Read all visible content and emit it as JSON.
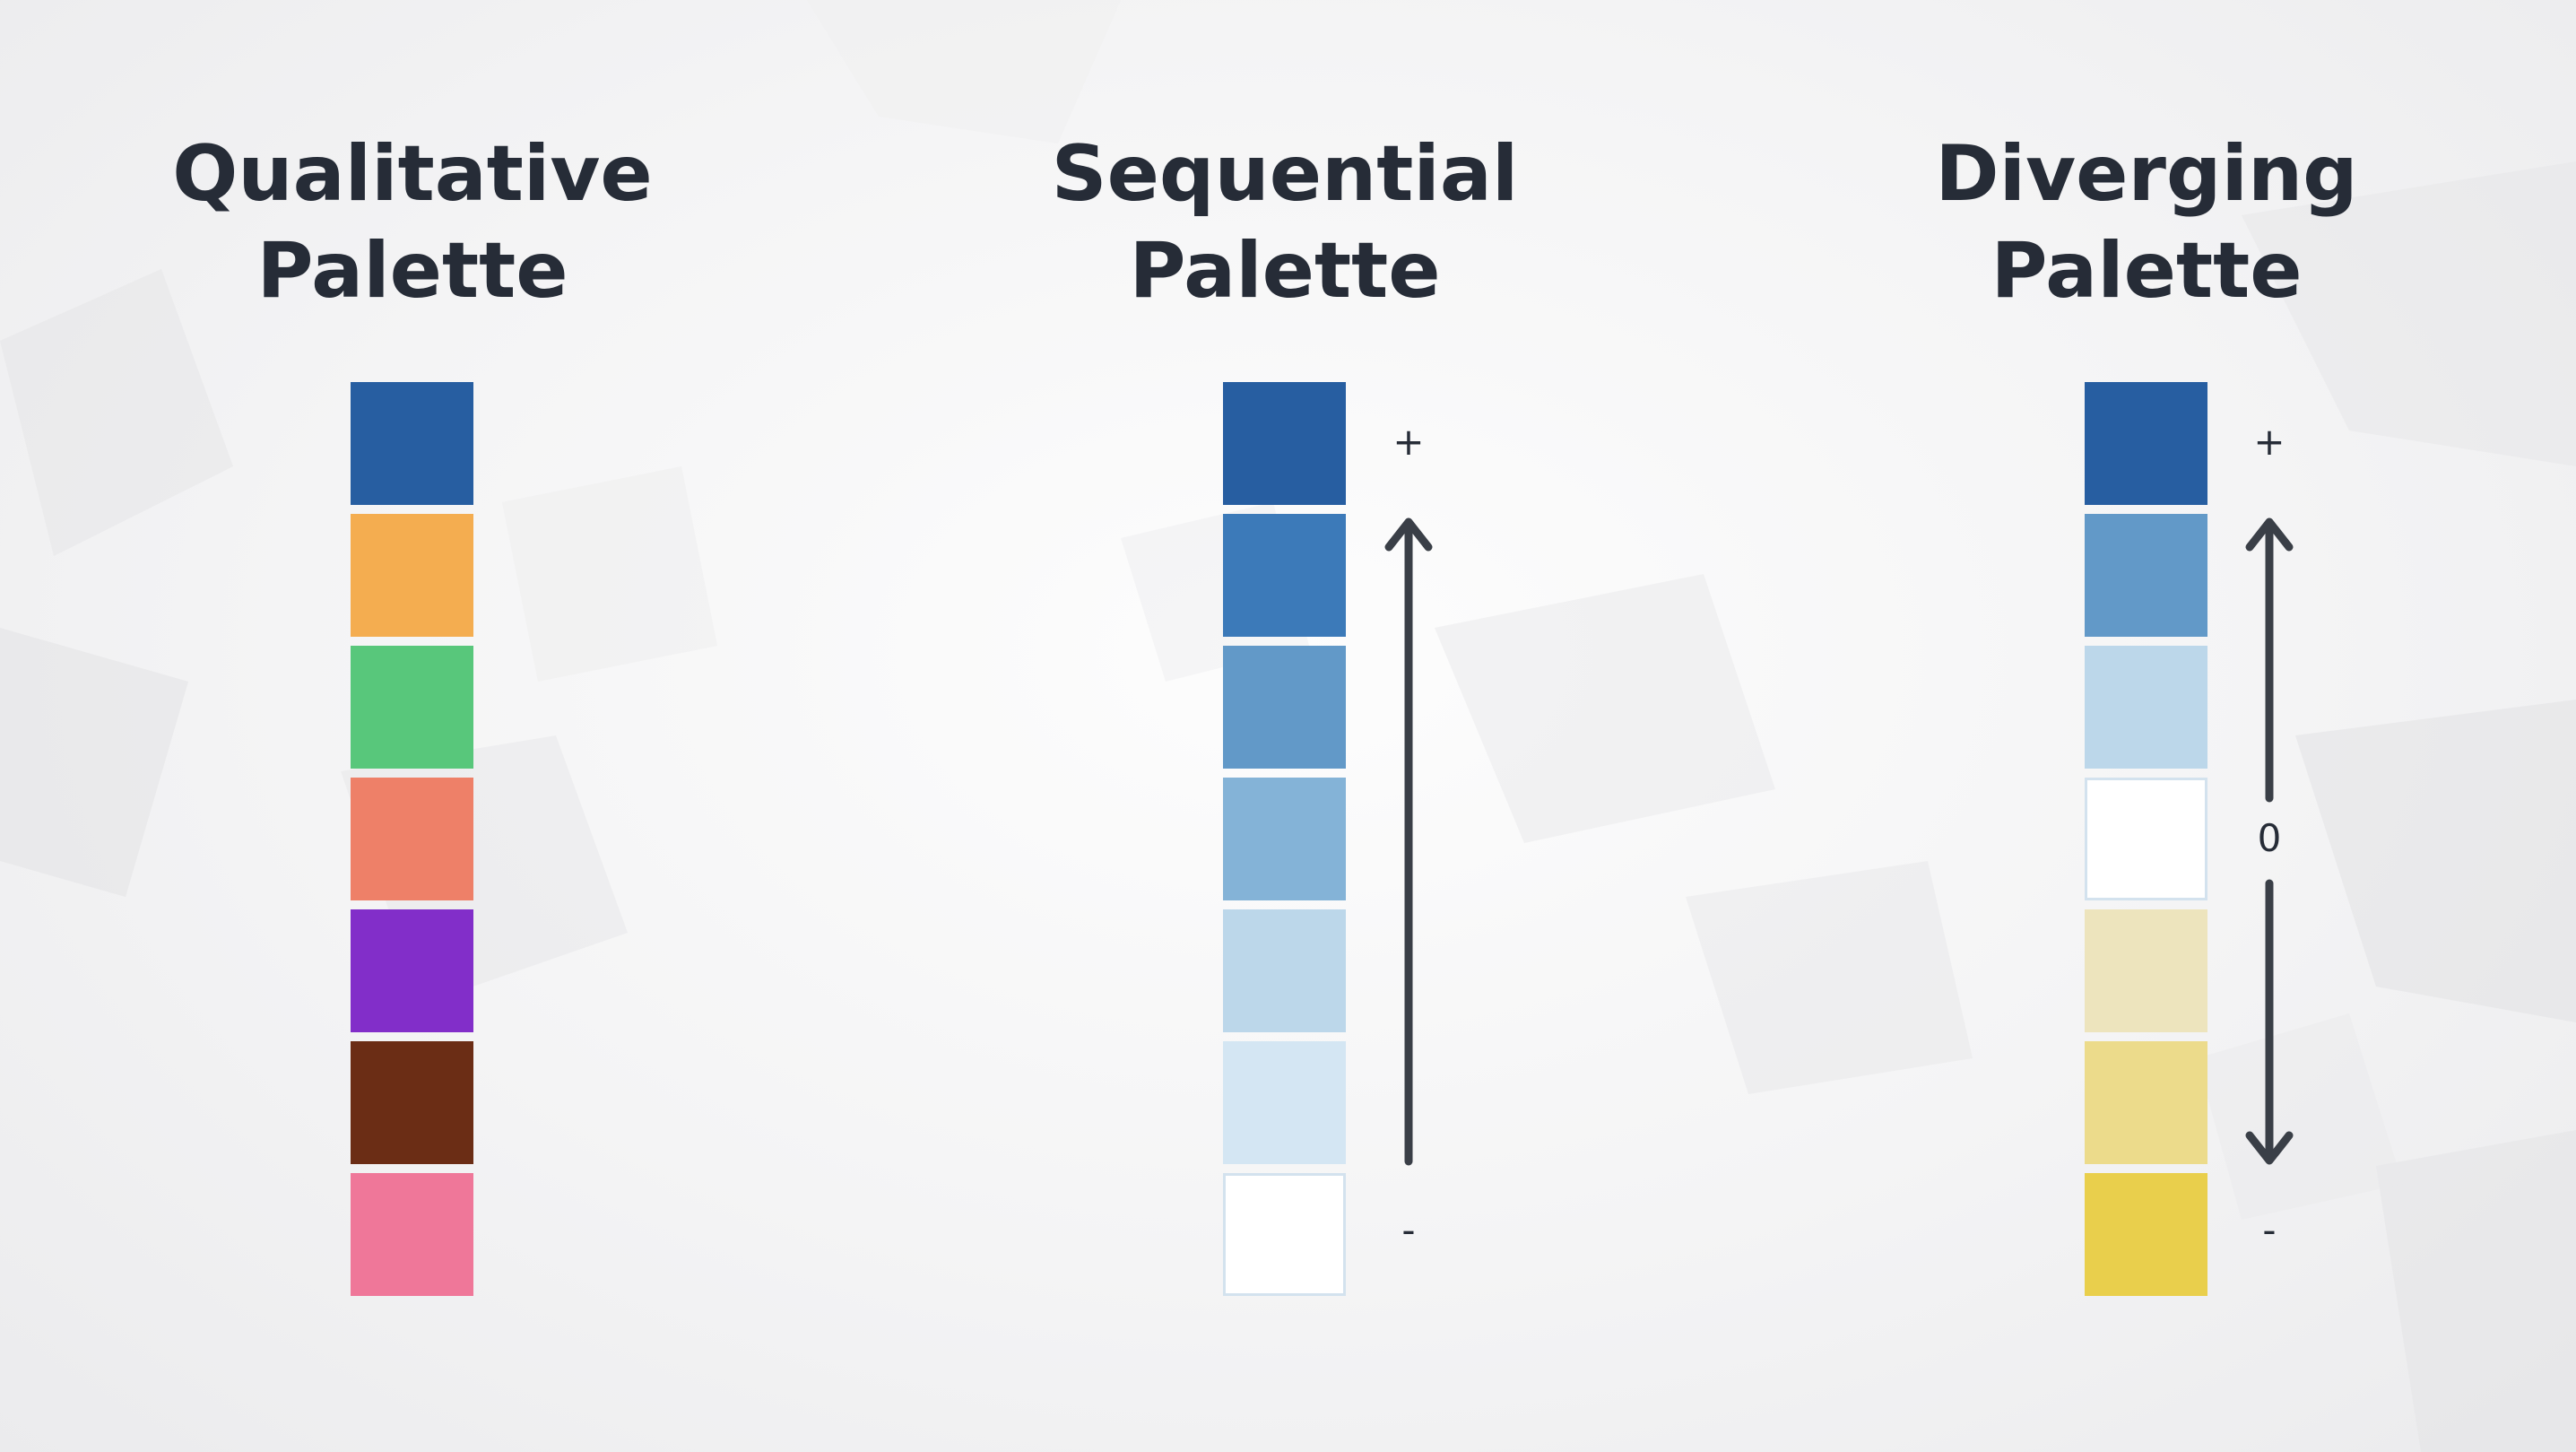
{
  "palettes": [
    {
      "id": "qualitative",
      "title_line1": "Qualitative",
      "title_line2": "Palette",
      "colors": [
        "#275ea1",
        "#f4ad50",
        "#58c77b",
        "#ee8068",
        "#822ec9",
        "#6b2d15",
        "#ef7799"
      ]
    },
    {
      "id": "sequential",
      "title_line1": "Sequential",
      "title_line2": "Palette",
      "colors": [
        "#275ea1",
        "#3c7ab9",
        "#6299c8",
        "#84b3d7",
        "#bcd7ea",
        "#d4e6f3",
        "#ffffff"
      ],
      "top_label": "+",
      "bottom_label": "-"
    },
    {
      "id": "diverging",
      "title_line1": "Diverging",
      "title_line2": "Palette",
      "colors": [
        "#275ea1",
        "#6299c8",
        "#bcd7ea",
        "#ffffff",
        "#ede4bd",
        "#ecdb8b",
        "#e9cf4c"
      ],
      "top_label": "+",
      "mid_label": "0",
      "bottom_label": "-"
    }
  ],
  "text_color": "#262c37",
  "arrow_color": "#3a3f47"
}
